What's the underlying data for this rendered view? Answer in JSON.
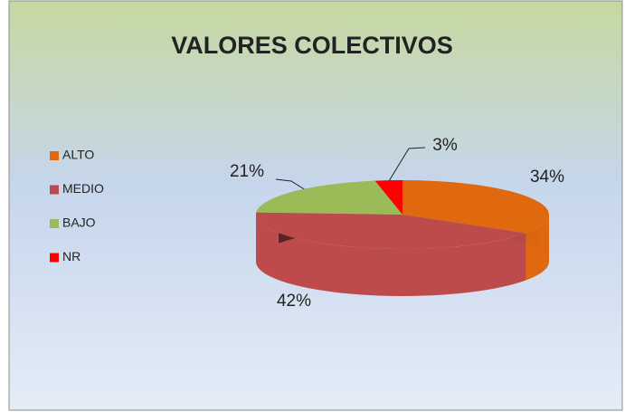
{
  "chart_data": {
    "type": "pie",
    "title": "VALORES COLECTIVOS",
    "categories": [
      "ALTO",
      "MEDIO",
      "BAJO",
      "NR"
    ],
    "values": [
      34,
      42,
      21,
      3
    ],
    "value_labels": [
      "34%",
      "42%",
      "21%",
      "3%"
    ],
    "colors": [
      "#e0680f",
      "#bd4b4b",
      "#9bbb59",
      "#ff0000"
    ],
    "legend": "left"
  }
}
